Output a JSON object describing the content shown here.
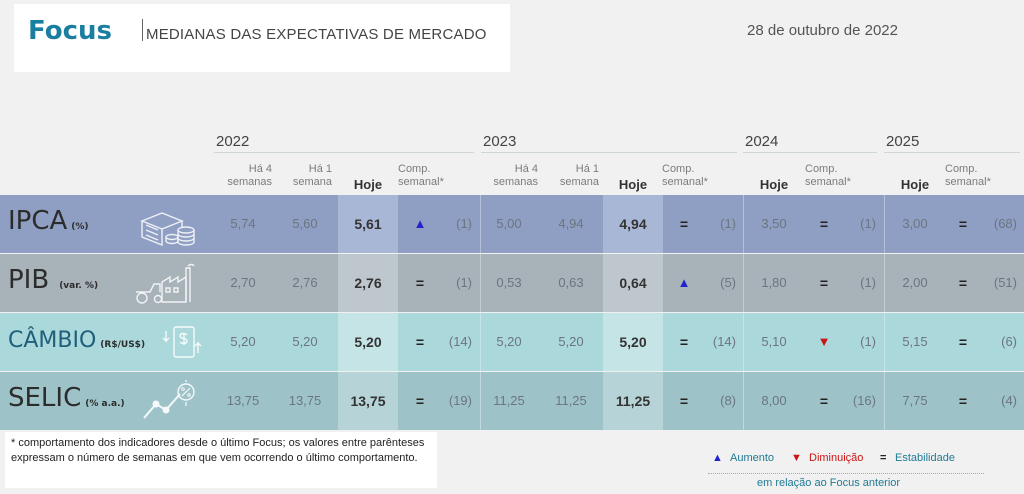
{
  "header": {
    "brand": "Focus",
    "subtitle": "MEDIANAS DAS EXPECTATIVAS DE MERCADO",
    "date": "28 de outubro de 2022"
  },
  "years": [
    "2022",
    "2023",
    "2024",
    "2025"
  ],
  "col_labels": {
    "ha4_line1": "Há 4",
    "ha4_line2": "semanas",
    "ha1_line1": "Há 1",
    "ha1_line2": "semana",
    "hoje": "Hoje",
    "comp_line1": "Comp.",
    "comp_line2": "semanal*"
  },
  "rows": [
    {
      "label": "IPCA",
      "unit": "(%)",
      "icon": "coins-stack-icon",
      "y2022": {
        "ha4": "5,74",
        "ha1": "5,60",
        "hoje": "5,61",
        "comp": "▲",
        "weeks": "(1)"
      },
      "y2023": {
        "ha4": "5,00",
        "ha1": "4,94",
        "hoje": "4,94",
        "comp": "=",
        "weeks": "(1)"
      },
      "y2024": {
        "hoje": "3,50",
        "comp": "=",
        "weeks": "(1)"
      },
      "y2025": {
        "hoje": "3,00",
        "comp": "=",
        "weeks": "(68)"
      }
    },
    {
      "label": "PIB",
      "unit": "(var. %)",
      "icon": "factory-tractor-icon",
      "y2022": {
        "ha4": "2,70",
        "ha1": "2,76",
        "hoje": "2,76",
        "comp": "=",
        "weeks": "(1)"
      },
      "y2023": {
        "ha4": "0,53",
        "ha1": "0,63",
        "hoje": "0,64",
        "comp": "▲",
        "weeks": "(5)"
      },
      "y2024": {
        "hoje": "1,80",
        "comp": "=",
        "weeks": "(1)"
      },
      "y2025": {
        "hoje": "2,00",
        "comp": "=",
        "weeks": "(51)"
      }
    },
    {
      "label": "CÂMBIO",
      "unit": "(R$/US$)",
      "icon": "currency-exchange-icon",
      "y2022": {
        "ha4": "5,20",
        "ha1": "5,20",
        "hoje": "5,20",
        "comp": "=",
        "weeks": "(14)"
      },
      "y2023": {
        "ha4": "5,20",
        "ha1": "5,20",
        "hoje": "5,20",
        "comp": "=",
        "weeks": "(14)"
      },
      "y2024": {
        "hoje": "5,10",
        "comp": "▼",
        "weeks": "(1)"
      },
      "y2025": {
        "hoje": "5,15",
        "comp": "=",
        "weeks": "(6)"
      }
    },
    {
      "label": "SELIC",
      "unit": "(% a.a.)",
      "icon": "percent-trend-icon",
      "y2022": {
        "ha4": "13,75",
        "ha1": "13,75",
        "hoje": "13,75",
        "comp": "=",
        "weeks": "(19)"
      },
      "y2023": {
        "ha4": "11,25",
        "ha1": "11,25",
        "hoje": "11,25",
        "comp": "=",
        "weeks": "(8)"
      },
      "y2024": {
        "hoje": "8,00",
        "comp": "=",
        "weeks": "(16)"
      },
      "y2025": {
        "hoje": "7,75",
        "comp": "=",
        "weeks": "(4)"
      }
    }
  ],
  "colors": {
    "brand": "#1a7ea0",
    "ipca": "#8f9fc3",
    "ipca_hoje": "#a9b7d6",
    "pib": "#a8b2b9",
    "pib_hoje": "#bec7cd",
    "cambio": "#aad8db",
    "cambio_hoje": "#c4e4e6",
    "selic": "#9dc3c9",
    "selic_hoje": "#b6d4d8",
    "up": "#2323cc",
    "down": "#cc1515"
  },
  "footnote": "* comportamento dos indicadores desde o último Focus; os valores entre parênteses expressam o número de semanas em que vem ocorrendo o último comportamento.",
  "legend": {
    "up_symbol": "▲",
    "up_label": "Aumento",
    "down_symbol": "▼",
    "down_label": "Diminuição",
    "eq_symbol": "=",
    "eq_label": "Estabilidade",
    "sub": "em relação ao Focus anterior"
  }
}
